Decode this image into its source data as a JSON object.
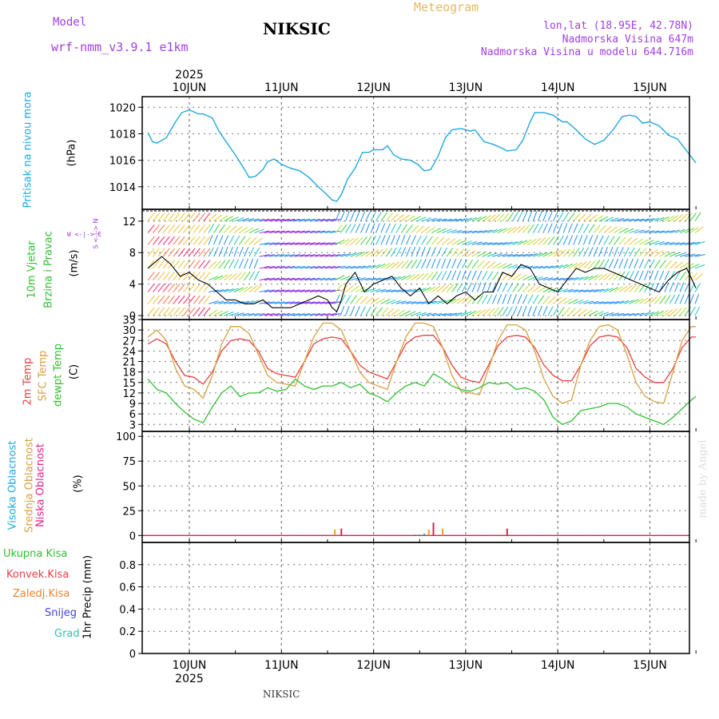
{
  "header": {
    "model_label": "Model",
    "model_name": "wrf-nmm_v3.9.1 e1km",
    "station": "NIKSIC",
    "product": "Meteogram",
    "lonlat": "lon,lat (18.95E, 42.78N)",
    "elevation": "Nadmorska Visina 647m",
    "model_elevation": "Nadmorska Visina u modelu 644.716m",
    "footer_station": "NIKSIC",
    "credit": "made by Angel"
  },
  "colors": {
    "pressure": "#1ea8e0",
    "temp2m": "#e84040",
    "sfc": "#d8a040",
    "dewpt": "#30c030",
    "purple": "#a040e0",
    "gridline": "#777777"
  },
  "time_axis": {
    "year": "2025",
    "days": [
      "10JUN",
      "11JUN",
      "12JUN",
      "13JUN",
      "14JUN",
      "15JUN"
    ]
  },
  "panel_labels": {
    "pressure": {
      "name": "Pritisak na nivou mora",
      "unit": "(hPa)"
    },
    "wind": {
      "line1": "10m Vjetar",
      "line2": "Brzina i Pravac",
      "unit": "(m/s)",
      "compass_ns": "S <-|-> N",
      "compass_we": "W <-|-> E"
    },
    "temp": {
      "line1": "2m Temp",
      "line2": "SFC Temp",
      "line3": "dewpt Temp",
      "unit": "(C)"
    },
    "cloud": {
      "line1": "Visoka Oblacnost",
      "line2": "Srednja Oblacnost",
      "line3": "Niska Oblacnost",
      "unit": "(%)"
    },
    "precip": {
      "unit": "1hr Precip (mm)",
      "legend": [
        "Ukupna Kisa",
        "Konvek.Kisa",
        "Zaledj.Kisa",
        "Snijeg",
        "Grad"
      ]
    }
  },
  "chart_data": [
    {
      "type": "line",
      "title": "",
      "ylabel": "Pritisak na nivou mora (hPa)",
      "ylim": [
        1012.3,
        1020.8
      ],
      "yticks": [
        1014,
        1016,
        1018,
        1020
      ],
      "x_range_days": [
        9.55,
        15.5
      ],
      "series": [
        {
          "name": "Pritisak na nivou mora",
          "x": [
            9.55,
            9.6,
            9.65,
            9.75,
            9.85,
            9.92,
            10.0,
            10.1,
            10.15,
            10.25,
            10.32,
            10.4,
            10.5,
            10.6,
            10.65,
            10.72,
            10.8,
            10.85,
            10.92,
            11.0,
            11.1,
            11.2,
            11.3,
            11.4,
            11.48,
            11.55,
            11.6,
            11.65,
            11.72,
            11.8,
            11.88,
            11.95,
            12.0,
            12.1,
            12.15,
            12.22,
            12.3,
            12.4,
            12.48,
            12.55,
            12.62,
            12.7,
            12.78,
            12.85,
            12.95,
            13.05,
            13.1,
            13.2,
            13.3,
            13.4,
            13.45,
            13.55,
            13.62,
            13.7,
            13.75,
            13.85,
            13.95,
            14.05,
            14.1,
            14.2,
            14.3,
            14.4,
            14.5,
            14.6,
            14.7,
            14.78,
            14.85,
            14.92,
            15.0,
            15.1,
            15.2,
            15.3,
            15.4,
            15.5
          ],
          "values": [
            1018.1,
            1017.4,
            1017.3,
            1017.7,
            1018.9,
            1019.6,
            1019.8,
            1019.5,
            1019.5,
            1019.2,
            1018.2,
            1017.4,
            1016.4,
            1015.3,
            1014.7,
            1014.8,
            1015.3,
            1015.9,
            1016.1,
            1015.7,
            1015.4,
            1015.2,
            1014.7,
            1014.0,
            1013.5,
            1013.0,
            1012.9,
            1013.4,
            1014.6,
            1015.4,
            1016.6,
            1016.6,
            1016.8,
            1016.8,
            1017.1,
            1016.4,
            1016.1,
            1016.0,
            1015.7,
            1015.2,
            1015.3,
            1016.3,
            1017.7,
            1018.3,
            1018.4,
            1018.2,
            1018.3,
            1017.4,
            1017.2,
            1016.9,
            1016.7,
            1016.8,
            1017.5,
            1018.9,
            1019.6,
            1019.6,
            1019.4,
            1018.9,
            1018.9,
            1018.3,
            1017.6,
            1017.2,
            1017.5,
            1018.3,
            1019.3,
            1019.4,
            1019.3,
            1018.8,
            1018.9,
            1018.6,
            1017.9,
            1017.6,
            1016.7,
            1015.8
          ]
        }
      ]
    },
    {
      "type": "line",
      "title": "",
      "ylabel": "10m Vjetar Brzina i Pravac (m/s)",
      "ylim": [
        -0.5,
        13.5
      ],
      "yticks": [
        0,
        4,
        8,
        12
      ],
      "x_range_days": [
        9.55,
        15.5
      ],
      "series": [
        {
          "name": "10m Vjetar",
          "x": [
            9.55,
            9.7,
            9.8,
            9.9,
            10.0,
            10.1,
            10.2,
            10.3,
            10.4,
            10.5,
            10.6,
            10.7,
            10.8,
            10.9,
            11.0,
            11.1,
            11.2,
            11.3,
            11.4,
            11.5,
            11.55,
            11.6,
            11.65,
            11.7,
            11.8,
            11.9,
            12.0,
            12.1,
            12.2,
            12.3,
            12.4,
            12.5,
            12.6,
            12.7,
            12.8,
            12.9,
            13.0,
            13.1,
            13.2,
            13.3,
            13.4,
            13.5,
            13.6,
            13.7,
            13.8,
            13.9,
            14.0,
            14.1,
            14.2,
            14.3,
            14.4,
            14.5,
            14.6,
            14.7,
            14.8,
            14.9,
            15.0,
            15.1,
            15.2,
            15.3,
            15.4,
            15.5
          ],
          "values": [
            6.0,
            7.5,
            6.5,
            5.0,
            5.5,
            4.5,
            4.0,
            3.0,
            2.0,
            2.0,
            1.5,
            1.5,
            2.0,
            1.0,
            1.0,
            1.0,
            1.5,
            2.0,
            2.5,
            2.0,
            1.0,
            0.5,
            2.0,
            4.0,
            5.5,
            3.0,
            4.0,
            4.5,
            5.0,
            3.5,
            2.5,
            3.5,
            1.5,
            2.5,
            1.5,
            2.5,
            3.0,
            2.0,
            3.0,
            3.0,
            5.5,
            5.0,
            6.5,
            6.0,
            4.0,
            3.5,
            3.0,
            4.5,
            6.0,
            5.5,
            6.0,
            6.0,
            5.5,
            5.0,
            4.5,
            4.0,
            3.5,
            3.0,
            4.5,
            5.5,
            6.0,
            3.5
          ]
        }
      ]
    },
    {
      "type": "line",
      "title": "",
      "ylabel": "(C)",
      "ylim": [
        1,
        33
      ],
      "yticks": [
        3,
        6,
        9,
        12,
        15,
        18,
        21,
        24,
        27,
        30,
        33
      ],
      "x_range_days": [
        9.55,
        15.5
      ],
      "series": [
        {
          "name": "2m Temp",
          "x": [
            9.55,
            9.65,
            9.75,
            9.85,
            9.95,
            10.05,
            10.15,
            10.25,
            10.35,
            10.45,
            10.55,
            10.65,
            10.75,
            10.85,
            10.95,
            11.05,
            11.15,
            11.25,
            11.35,
            11.45,
            11.55,
            11.65,
            11.75,
            11.85,
            11.95,
            12.05,
            12.15,
            12.25,
            12.35,
            12.45,
            12.55,
            12.65,
            12.75,
            12.85,
            12.95,
            13.05,
            13.15,
            13.25,
            13.35,
            13.45,
            13.55,
            13.65,
            13.75,
            13.85,
            13.95,
            14.05,
            14.15,
            14.25,
            14.35,
            14.45,
            14.55,
            14.65,
            14.75,
            14.85,
            14.95,
            15.05,
            15.15,
            15.25,
            15.35,
            15.45,
            15.5
          ],
          "values": [
            26,
            27.5,
            26,
            21,
            17,
            16.5,
            14.5,
            18,
            24,
            27,
            27.5,
            27,
            24,
            19,
            17.5,
            17,
            16.5,
            21,
            26,
            27.5,
            28,
            27.5,
            24,
            20,
            18,
            17,
            16,
            21,
            26,
            28,
            28.5,
            28.5,
            25,
            20,
            16.5,
            15.5,
            15,
            20,
            25.5,
            28,
            28.5,
            28,
            25,
            20,
            17,
            15.5,
            15.5,
            20,
            25.5,
            28,
            28.5,
            28,
            25,
            19,
            16.5,
            15,
            15,
            19,
            25,
            28,
            28
          ]
        },
        {
          "name": "SFC Temp",
          "x": [
            9.55,
            9.65,
            9.75,
            9.85,
            9.95,
            10.05,
            10.15,
            10.25,
            10.35,
            10.45,
            10.55,
            10.65,
            10.75,
            10.85,
            10.95,
            11.05,
            11.15,
            11.25,
            11.35,
            11.45,
            11.55,
            11.65,
            11.75,
            11.85,
            11.95,
            12.05,
            12.15,
            12.25,
            12.35,
            12.45,
            12.55,
            12.65,
            12.75,
            12.85,
            12.95,
            13.05,
            13.15,
            13.25,
            13.35,
            13.45,
            13.55,
            13.65,
            13.75,
            13.85,
            13.95,
            14.05,
            14.15,
            14.25,
            14.35,
            14.45,
            14.55,
            14.65,
            14.75,
            14.85,
            14.95,
            15.05,
            15.15,
            15.25,
            15.35,
            15.45,
            15.5
          ],
          "values": [
            28,
            30,
            27,
            19,
            14,
            13,
            10.5,
            17,
            26,
            31,
            31,
            29,
            23,
            17,
            15,
            14.5,
            14,
            21,
            28,
            32,
            32,
            30,
            24,
            18,
            15,
            14,
            13,
            21,
            28,
            32,
            32,
            31,
            25,
            17,
            12.5,
            12,
            11.5,
            19,
            27,
            31.5,
            31.5,
            30,
            24,
            16,
            11,
            9,
            10,
            20,
            27,
            31,
            31.5,
            30,
            23,
            15,
            11,
            9.5,
            9,
            18,
            27,
            31,
            31
          ]
        },
        {
          "name": "dewpt Temp",
          "x": [
            9.55,
            9.65,
            9.75,
            9.85,
            9.95,
            10.05,
            10.15,
            10.25,
            10.35,
            10.45,
            10.55,
            10.65,
            10.75,
            10.85,
            10.95,
            11.05,
            11.15,
            11.25,
            11.35,
            11.45,
            11.55,
            11.65,
            11.75,
            11.85,
            11.95,
            12.05,
            12.15,
            12.25,
            12.35,
            12.45,
            12.55,
            12.65,
            12.75,
            12.85,
            12.95,
            13.05,
            13.15,
            13.25,
            13.35,
            13.45,
            13.55,
            13.65,
            13.75,
            13.85,
            13.95,
            14.05,
            14.15,
            14.25,
            14.35,
            14.45,
            14.55,
            14.65,
            14.75,
            14.85,
            14.95,
            15.05,
            15.15,
            15.25,
            15.35,
            15.45,
            15.5
          ],
          "values": [
            16,
            13,
            12,
            9,
            6.5,
            4.5,
            3.5,
            8,
            12,
            14,
            11,
            12,
            12,
            13.5,
            12.5,
            13,
            16,
            14,
            13,
            14,
            14,
            15,
            13.5,
            14.5,
            12,
            11,
            9.5,
            12,
            14,
            15,
            14,
            17.5,
            16,
            14,
            13,
            12.5,
            13.5,
            15,
            14.5,
            15,
            13,
            13.5,
            12.5,
            10,
            5,
            3,
            4,
            7,
            7.5,
            8,
            9,
            9,
            8,
            6,
            5,
            4,
            3,
            5,
            7.5,
            10,
            11
          ]
        }
      ]
    },
    {
      "type": "bar",
      "title": "",
      "ylabel": "(%)",
      "ylim": [
        -7,
        105
      ],
      "yticks": [
        0,
        25,
        50,
        75,
        100
      ],
      "x_range_days": [
        9.55,
        15.5
      ],
      "series": [
        {
          "name": "Visoka Oblacnost",
          "x": [
            12.45,
            12.5,
            12.55
          ],
          "values": [
            1,
            1,
            2
          ]
        },
        {
          "name": "Srednja Oblacnost",
          "x": [
            11.58,
            12.6,
            12.75
          ],
          "values": [
            6,
            6,
            7
          ]
        },
        {
          "name": "Niska Oblacnost",
          "x": [
            11.65,
            12.65,
            13.45
          ],
          "values": [
            7,
            13,
            7
          ]
        }
      ]
    },
    {
      "type": "bar",
      "title": "",
      "ylabel": "1hr Precip (mm)",
      "ylim": [
        0,
        1.0
      ],
      "yticks": [
        0,
        0.2,
        0.4,
        0.6,
        0.8
      ],
      "x_range_days": [
        9.55,
        15.5
      ],
      "series": [
        {
          "name": "Ukupna Kisa",
          "x": [],
          "values": []
        }
      ]
    }
  ]
}
